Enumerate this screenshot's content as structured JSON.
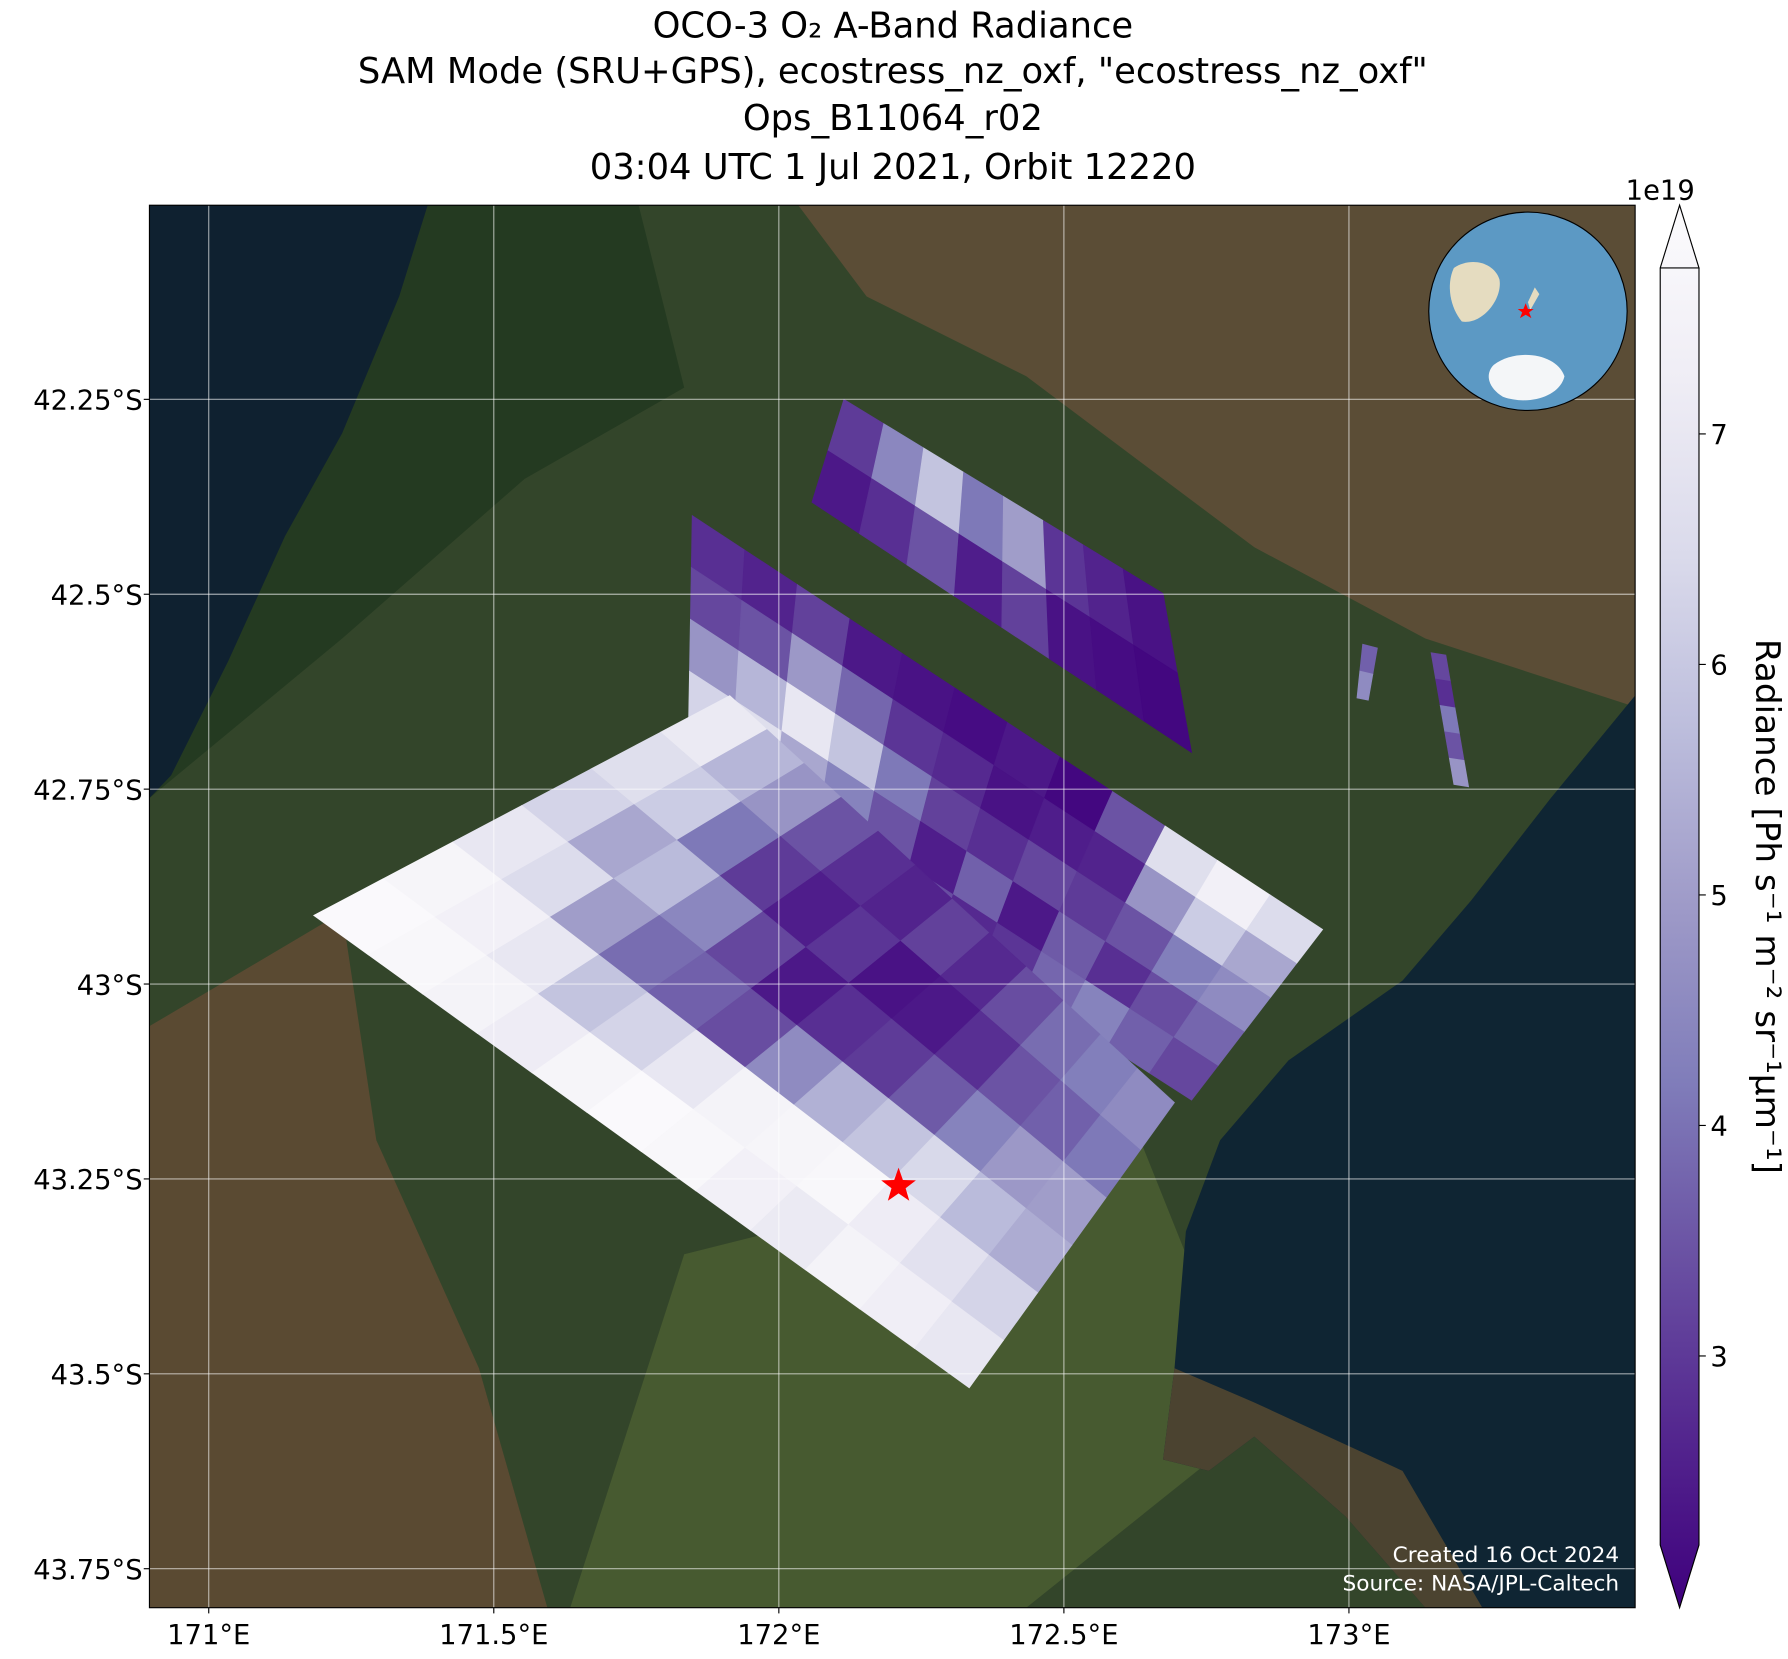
{
  "chart_data": {
    "type": "swath-map",
    "title": [
      "OCO-3 O₂ A-Band Radiance",
      "SAM Mode (SRU+GPS), ecostress_nz_oxf, \"ecostress_nz_oxf\"",
      "Ops_B11064_r02",
      "03:04 UTC 1 Jul 2021, Orbit 12220"
    ],
    "xlim": [
      170.896,
      173.502
    ],
    "ylim": [
      42.001,
      43.8
    ],
    "xticks": [
      {
        "value": 171,
        "label": "171°E"
      },
      {
        "value": 171.5,
        "label": "171.5°E"
      },
      {
        "value": 172,
        "label": "172°E"
      },
      {
        "value": 172.5,
        "label": "172.5°E"
      },
      {
        "value": 173,
        "label": "173°E"
      }
    ],
    "yticks": [
      {
        "value": 42.25,
        "label": "42.25°S"
      },
      {
        "value": 42.5,
        "label": "42.5°S"
      },
      {
        "value": 42.75,
        "label": "42.75°S"
      },
      {
        "value": 43,
        "label": "43°S"
      },
      {
        "value": 43.25,
        "label": "43.25°S"
      },
      {
        "value": 43.5,
        "label": "43.5°S"
      },
      {
        "value": 43.75,
        "label": "43.75°S"
      }
    ],
    "grid": true,
    "target": {
      "lon": 172.21,
      "lat": 43.259,
      "color": "#ff0000"
    },
    "swaths": [
      {
        "corners": [
          [
            172.114,
            42.25
          ],
          [
            172.674,
            42.499
          ],
          [
            172.724,
            42.703
          ],
          [
            172.058,
            42.382
          ]
        ],
        "values": [
          [
            3.2,
            2.6
          ],
          [
            4.5,
            3.0
          ],
          [
            5.8,
            3.6
          ],
          [
            4.2,
            2.7
          ],
          [
            5.0,
            3.3
          ],
          [
            3.1,
            2.5
          ],
          [
            2.8,
            2.4
          ],
          [
            2.5,
            2.3
          ]
        ]
      },
      {
        "corners": [
          [
            171.848,
            42.399
          ],
          [
            172.954,
            42.93
          ],
          [
            172.724,
            43.149
          ],
          [
            171.84,
            42.732
          ]
        ],
        "values": [
          [
            3.0,
            3.4,
            4.8,
            6.2,
            6.8
          ],
          [
            2.8,
            3.6,
            5.5,
            6.5,
            5.9
          ],
          [
            3.3,
            4.9,
            6.8,
            5.2,
            4.1
          ],
          [
            2.6,
            3.9,
            5.8,
            4.4,
            3.2
          ],
          [
            2.5,
            3.1,
            4.2,
            3.6,
            2.8
          ],
          [
            2.4,
            2.9,
            3.3,
            2.7,
            3.5
          ],
          [
            2.6,
            2.5,
            3.0,
            3.8,
            2.9
          ],
          [
            2.3,
            2.7,
            3.4,
            2.6,
            3.1
          ],
          [
            3.6,
            2.8,
            3.2,
            3.7,
            3.9
          ],
          [
            6.5,
            4.8,
            3.6,
            3.0,
            4.4
          ],
          [
            7.2,
            6.0,
            4.3,
            3.5,
            3.8
          ],
          [
            6.4,
            5.2,
            4.6,
            3.9,
            3.4
          ]
        ]
      },
      {
        "corners": [
          [
            171.914,
            42.63
          ],
          [
            172.694,
            43.152
          ],
          [
            172.334,
            43.518
          ],
          [
            171.184,
            42.912
          ]
        ],
        "values": [
          [
            6.9,
            6.5,
            6.2,
            6.8,
            7.4,
            7.6
          ],
          [
            5.5,
            6.0,
            5.2,
            6.4,
            7.2,
            7.5
          ],
          [
            4.8,
            4.2,
            5.6,
            5.0,
            6.8,
            7.3
          ],
          [
            3.6,
            3.2,
            4.5,
            4.0,
            5.8,
            7.0
          ],
          [
            3.0,
            2.7,
            3.4,
            3.8,
            6.2,
            7.4
          ],
          [
            2.8,
            3.1,
            2.6,
            3.5,
            6.8,
            7.6
          ],
          [
            3.3,
            2.5,
            3.0,
            4.6,
            7.3,
            7.5
          ],
          [
            2.9,
            2.6,
            3.2,
            5.4,
            7.4,
            7.2
          ],
          [
            3.5,
            3.0,
            3.7,
            5.8,
            7.5,
            6.9
          ],
          [
            4.0,
            3.6,
            4.4,
            6.3,
            7.0,
            7.3
          ],
          [
            4.3,
            3.8,
            4.9,
            5.6,
            6.6,
            7.1
          ],
          [
            4.6,
            4.2,
            5.0,
            5.3,
            6.2,
            6.8
          ]
        ]
      },
      {
        "corners": [
          [
            173.024,
            42.564
          ],
          [
            173.014,
            42.633
          ],
          [
            173.034,
            42.636
          ],
          [
            173.05,
            42.569
          ]
        ],
        "values": [
          [
            3.8
          ],
          [
            4.6
          ]
        ]
      },
      {
        "corners": [
          [
            173.144,
            42.575
          ],
          [
            173.184,
            42.744
          ],
          [
            173.21,
            42.747
          ],
          [
            173.17,
            42.578
          ]
        ],
        "values": [
          [
            3.4
          ],
          [
            3.0
          ],
          [
            4.2
          ],
          [
            3.6
          ],
          [
            4.8
          ]
        ]
      }
    ],
    "colorbar": {
      "label": "Radiance [Ph s⁻¹ m⁻² sr⁻¹μm⁻¹]",
      "offset_label": "1e19",
      "clim": [
        2.18,
        7.72
      ],
      "ticks": [
        3,
        4,
        5,
        6,
        7
      ],
      "colormap": [
        "#3f007d",
        "#54278f",
        "#6a51a3",
        "#807dba",
        "#9e9ac8",
        "#bcbddc",
        "#dadaeb",
        "#efedf5",
        "#fcfbfd"
      ]
    },
    "footer": [
      "Created 16 Oct 2024",
      "Source: NASA/JPL-Caltech"
    ]
  }
}
